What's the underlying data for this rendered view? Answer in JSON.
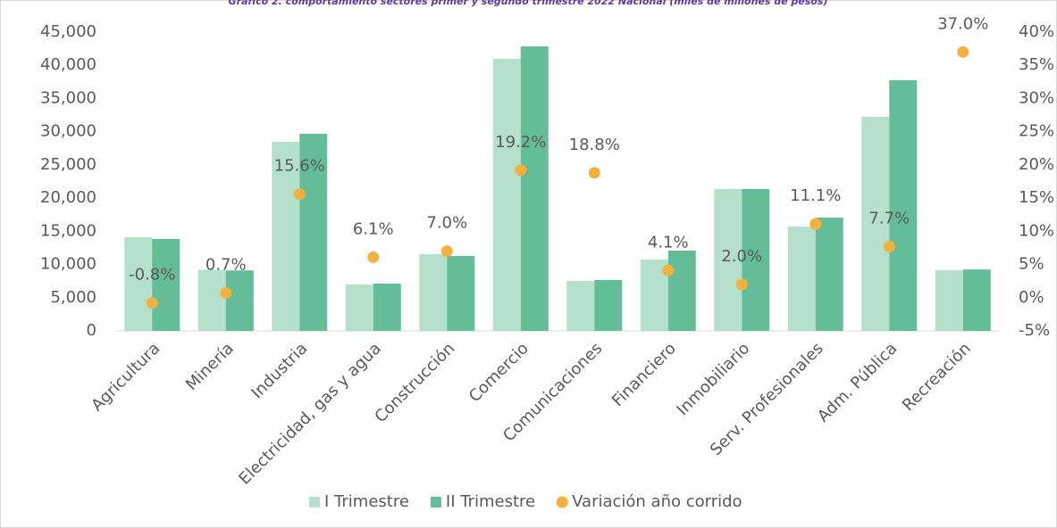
{
  "chart_data": {
    "type": "bar_dot",
    "title": "Gráfico 2. comportamiento sectores primer y segundo trimestre 2022 Nacional (miles de millones de pesos)",
    "categories": [
      "Agricultura",
      "Minería",
      "Industria",
      "Electricidad, gas y agua",
      "Construcción",
      "Comercio",
      "Comunicaciones",
      "Financiero",
      "Inmobiliario",
      "Serv. Profesionales",
      "Adm. Pública",
      "Recreación"
    ],
    "series": [
      {
        "name": "I Trimestre",
        "color": "#b5e0cc",
        "values": [
          14100,
          9200,
          28480,
          6985,
          11550,
          40970,
          7520,
          10750,
          21360,
          15720,
          32240,
          9150
        ]
      },
      {
        "name": "II Trimestre",
        "color": "#63be97",
        "values": [
          13850,
          9100,
          29690,
          7120,
          11280,
          42850,
          7660,
          12090,
          21360,
          17060,
          37750,
          9250
        ]
      },
      {
        "name": "Variación año corrido",
        "color": "#f4b13e",
        "axis": "y2",
        "values": [
          -0.8,
          0.7,
          15.6,
          6.1,
          7.0,
          19.2,
          18.8,
          4.1,
          2.0,
          11.1,
          7.7,
          37.0
        ],
        "value_labels": [
          "-0.8%",
          "0.7%",
          "15.6%",
          "6.1%",
          "7.0%",
          "19.2%",
          "18.8%",
          "4.1%",
          "2.0%",
          "11.1%",
          "7.7%",
          "37.0%"
        ]
      }
    ],
    "ylim": [
      0,
      45000
    ],
    "yticks": [
      0,
      {
        "value": 5000,
        "label": "5,000"
      },
      {
        "value": 10000,
        "label": "10,000"
      },
      {
        "value": 15000,
        "label": "15,000"
      },
      {
        "value": 20000,
        "label": "20,000"
      },
      {
        "value": 25000,
        "label": "25,000"
      },
      {
        "value": 30000,
        "label": "30,000"
      },
      {
        "value": 35000,
        "label": "35,000"
      },
      {
        "value": 40000,
        "label": "40,000"
      },
      {
        "value": 45000,
        "label": "45,000"
      }
    ],
    "y2lim": [
      -5,
      40
    ],
    "y2ticks": [
      {
        "value": -5,
        "label": "-5%"
      },
      {
        "value": 0,
        "label": "0%"
      },
      {
        "value": 5,
        "label": "5%"
      },
      {
        "value": 10,
        "label": "10%"
      },
      {
        "value": 15,
        "label": "15%"
      },
      {
        "value": 20,
        "label": "20%"
      },
      {
        "value": 25,
        "label": "25%"
      },
      {
        "value": 30,
        "label": "30%"
      },
      {
        "value": 35,
        "label": "35%"
      },
      {
        "value": 40,
        "label": "40%"
      }
    ],
    "legend": "bottom"
  }
}
